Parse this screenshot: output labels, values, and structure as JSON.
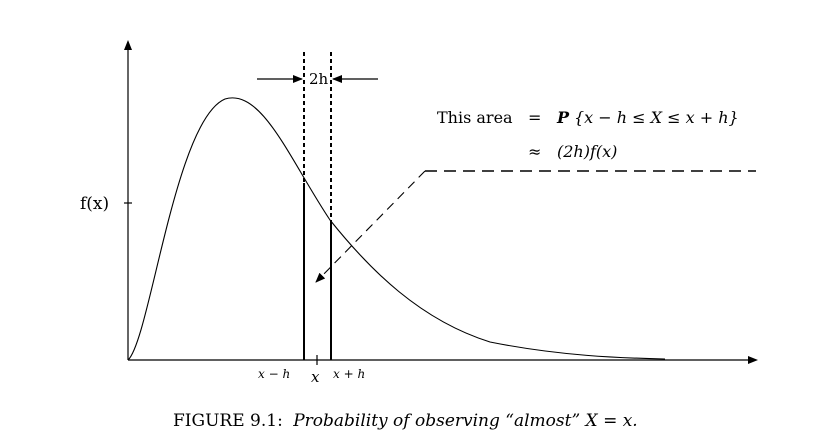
{
  "labels": {
    "fx": "f(x)",
    "width": "2h",
    "x_minus_h": "x − h",
    "x": "x",
    "x_plus_h": "x + h"
  },
  "annotation": {
    "lead": "This area",
    "eq_sign": "=",
    "prob_symbol": "P",
    "prob_expr": "{x − h ≤ X ≤ x + h}",
    "approx_sign": "≈",
    "approx_expr": "(2h)f(x)"
  },
  "caption": {
    "prefix": "FIGURE 9.1:",
    "text": "Probability of observing “almost” X = x."
  }
}
